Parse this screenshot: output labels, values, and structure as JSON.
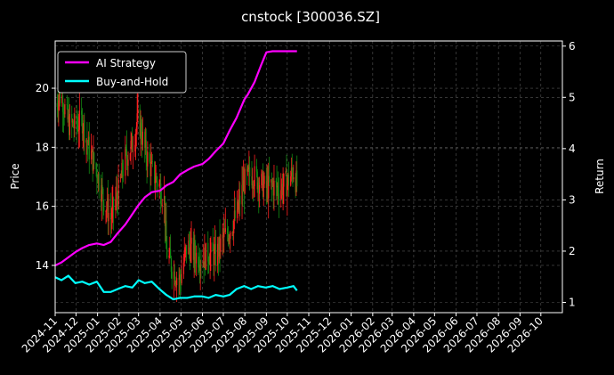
{
  "chart_data": {
    "type": "line",
    "title": "cnstock [300036.SZ]",
    "ylabel_left": "Price",
    "ylabel_right": "Return",
    "xlim": [
      "2024-11-01",
      "2026-11-01"
    ],
    "ylim_left": [
      12.4,
      21.6
    ],
    "ylim_right": [
      0.8,
      6.1
    ],
    "grid": true,
    "legend_position": "top-left",
    "x_ticks": [
      "2024-11",
      "2024-12",
      "2025-01",
      "2025-02",
      "2025-03",
      "2025-04",
      "2025-05",
      "2025-06",
      "2025-07",
      "2025-08",
      "2025-09",
      "2025-10",
      "2025-11",
      "2025-12",
      "2026-01",
      "2026-02",
      "2026-03",
      "2026-04",
      "2026-05",
      "2026-06",
      "2026-07",
      "2026-08",
      "2026-09",
      "2026-10"
    ],
    "y_ticks_left": [
      14,
      16,
      18,
      20
    ],
    "y_ticks_right": [
      1,
      2,
      3,
      4,
      5,
      6
    ],
    "colors": {
      "background": "#000000",
      "ai_strategy": "#ff00ff",
      "buy_and_hold": "#00ffff",
      "candle_up": "#ff2020",
      "candle_down": "#138a13",
      "grid": "#555555"
    },
    "series": [
      {
        "name": "AI Strategy",
        "axis": "right",
        "points": [
          [
            "2024-11-01",
            1.72
          ],
          [
            "2024-11-10",
            1.78
          ],
          [
            "2024-11-20",
            1.88
          ],
          [
            "2024-11-30",
            1.98
          ],
          [
            "2024-12-10",
            2.06
          ],
          [
            "2024-12-20",
            2.12
          ],
          [
            "2024-12-31",
            2.15
          ],
          [
            "2025-01-10",
            2.12
          ],
          [
            "2025-01-20",
            2.18
          ],
          [
            "2025-01-30",
            2.35
          ],
          [
            "2025-02-10",
            2.52
          ],
          [
            "2025-02-20",
            2.72
          ],
          [
            "2025-03-01",
            2.9
          ],
          [
            "2025-03-10",
            3.05
          ],
          [
            "2025-03-20",
            3.15
          ],
          [
            "2025-04-01",
            3.18
          ],
          [
            "2025-04-10",
            3.28
          ],
          [
            "2025-04-20",
            3.35
          ],
          [
            "2025-04-30",
            3.5
          ],
          [
            "2025-05-10",
            3.58
          ],
          [
            "2025-05-20",
            3.65
          ],
          [
            "2025-06-01",
            3.7
          ],
          [
            "2025-06-10",
            3.8
          ],
          [
            "2025-06-20",
            3.95
          ],
          [
            "2025-07-01",
            4.1
          ],
          [
            "2025-07-10",
            4.35
          ],
          [
            "2025-07-20",
            4.6
          ],
          [
            "2025-07-31",
            4.95
          ],
          [
            "2025-08-05",
            5.05
          ],
          [
            "2025-08-15",
            5.3
          ],
          [
            "2025-08-25",
            5.65
          ],
          [
            "2025-09-01",
            5.88
          ],
          [
            "2025-09-10",
            5.9
          ],
          [
            "2025-09-20",
            5.9
          ],
          [
            "2025-10-01",
            5.9
          ],
          [
            "2025-10-15",
            5.9
          ]
        ]
      },
      {
        "name": "Buy-and-Hold",
        "axis": "left",
        "points": [
          [
            "2024-11-01",
            13.6
          ],
          [
            "2024-11-10",
            13.5
          ],
          [
            "2024-11-20",
            13.65
          ],
          [
            "2024-11-30",
            13.4
          ],
          [
            "2024-12-10",
            13.45
          ],
          [
            "2024-12-20",
            13.35
          ],
          [
            "2024-12-31",
            13.45
          ],
          [
            "2025-01-10",
            13.1
          ],
          [
            "2025-01-20",
            13.1
          ],
          [
            "2025-01-30",
            13.2
          ],
          [
            "2025-02-10",
            13.3
          ],
          [
            "2025-02-20",
            13.25
          ],
          [
            "2025-03-01",
            13.5
          ],
          [
            "2025-03-10",
            13.4
          ],
          [
            "2025-03-20",
            13.45
          ],
          [
            "2025-03-31",
            13.2
          ],
          [
            "2025-04-10",
            13.0
          ],
          [
            "2025-04-20",
            12.85
          ],
          [
            "2025-04-30",
            12.9
          ],
          [
            "2025-05-10",
            12.9
          ],
          [
            "2025-05-20",
            12.95
          ],
          [
            "2025-06-01",
            12.95
          ],
          [
            "2025-06-10",
            12.9
          ],
          [
            "2025-06-20",
            13.0
          ],
          [
            "2025-07-01",
            12.95
          ],
          [
            "2025-07-10",
            13.0
          ],
          [
            "2025-07-20",
            13.2
          ],
          [
            "2025-07-31",
            13.3
          ],
          [
            "2025-08-10",
            13.2
          ],
          [
            "2025-08-20",
            13.3
          ],
          [
            "2025-08-31",
            13.25
          ],
          [
            "2025-09-10",
            13.3
          ],
          [
            "2025-09-20",
            13.2
          ],
          [
            "2025-10-01",
            13.25
          ],
          [
            "2025-10-10",
            13.3
          ],
          [
            "2025-10-15",
            13.15
          ]
        ]
      }
    ],
    "price_range": {
      "points": [
        [
          "2024-11-01",
          19.5
        ],
        [
          "2024-11-10",
          19.8
        ],
        [
          "2024-11-20",
          18.8
        ],
        [
          "2024-11-30",
          18.7
        ],
        [
          "2024-12-10",
          18.9
        ],
        [
          "2024-12-20",
          17.9
        ],
        [
          "2024-12-31",
          17.2
        ],
        [
          "2025-01-10",
          16.2
        ],
        [
          "2025-01-20",
          15.6
        ],
        [
          "2025-01-30",
          16.4
        ],
        [
          "2025-02-10",
          17.6
        ],
        [
          "2025-02-20",
          18.1
        ],
        [
          "2025-03-01",
          19.0
        ],
        [
          "2025-03-10",
          17.9
        ],
        [
          "2025-03-20",
          17.2
        ],
        [
          "2025-03-31",
          16.7
        ],
        [
          "2025-04-07",
          16.2
        ],
        [
          "2025-04-10",
          14.5
        ],
        [
          "2025-04-20",
          13.8
        ],
        [
          "2025-04-30",
          13.5
        ],
        [
          "2025-05-10",
          14.7
        ],
        [
          "2025-05-20",
          14.4
        ],
        [
          "2025-06-01",
          14.2
        ],
        [
          "2025-06-10",
          14.4
        ],
        [
          "2025-06-20",
          14.3
        ],
        [
          "2025-07-01",
          14.9
        ],
        [
          "2025-07-10",
          15.2
        ],
        [
          "2025-07-20",
          15.7
        ],
        [
          "2025-07-31",
          16.8
        ],
        [
          "2025-08-10",
          17.1
        ],
        [
          "2025-08-20",
          16.9
        ],
        [
          "2025-08-31",
          16.6
        ],
        [
          "2025-09-10",
          16.7
        ],
        [
          "2025-09-20",
          16.6
        ],
        [
          "2025-10-01",
          16.8
        ],
        [
          "2025-10-10",
          17.2
        ],
        [
          "2025-10-15",
          16.7
        ]
      ]
    }
  }
}
